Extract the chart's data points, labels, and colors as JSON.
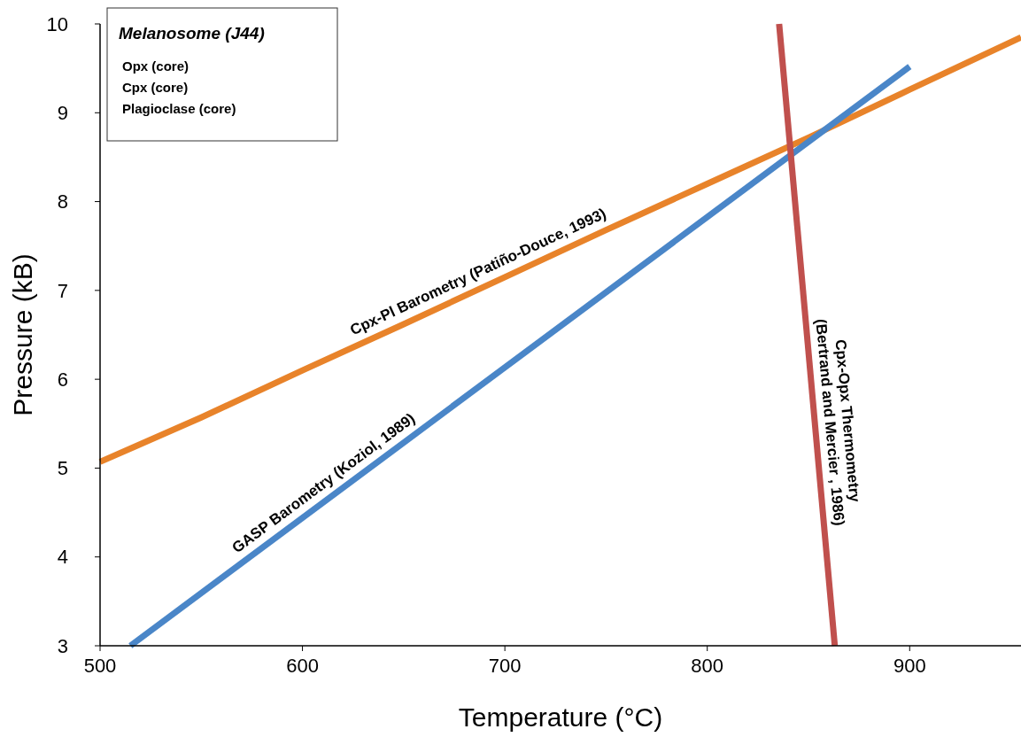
{
  "chart_data": {
    "type": "line",
    "xlabel": "Temperature  (°C)",
    "ylabel": "Pressure (kB)",
    "xlim": [
      500,
      955
    ],
    "xticks": [
      500,
      600,
      700,
      800,
      900
    ],
    "ylim": [
      3,
      10
    ],
    "yticks": [
      3,
      4,
      5,
      6,
      7,
      8,
      9,
      10
    ],
    "grid": false,
    "marker": "none",
    "line_style": "solid",
    "series": [
      {
        "color": "#e8832a",
        "x": [
          500,
          550,
          600,
          650,
          700,
          750,
          800,
          850,
          900,
          955
        ],
        "values": [
          5.07,
          5.57,
          6.1,
          6.62,
          7.15,
          7.68,
          8.2,
          8.72,
          9.26,
          9.85
        ]
      },
      {
        "color": "#4a86c8",
        "x": [
          515,
          900
        ],
        "values": [
          3,
          9.52
        ]
      },
      {
        "color": "#c0504d",
        "x": [
          835.5,
          863
        ],
        "values": [
          10,
          3
        ]
      }
    ],
    "annotations": [
      "Melanosome (J44)",
      "Opx (core)",
      "Cpx (core)",
      "Plagioclase (core)",
      {
        "text": "Cpx-Pl Barometry (Patiño-Douce, 1993)",
        "x": 690,
        "y": 7.05
      },
      {
        "text": "GASP Barometry (Koziol, 1989)",
        "x": 615,
        "y": 4.69
      },
      {
        "text": "Cpx-Opx Thermometry\n(Bertrand and Mercier , 1986)",
        "x": 853,
        "y": 5.5
      }
    ]
  }
}
